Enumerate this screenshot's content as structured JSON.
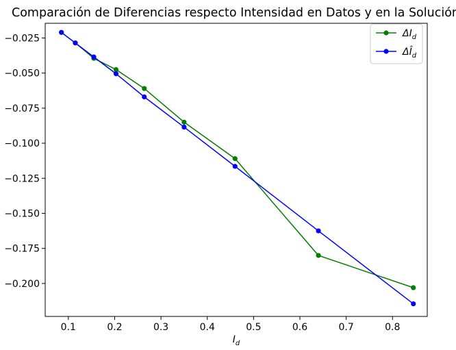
{
  "chart_data": {
    "type": "line",
    "title": "Comparación de Diferencias respecto Intensidad en Datos y en la Solución",
    "xlabel": "I_d",
    "ylabel": "",
    "xlim": [
      0.05,
      0.875
    ],
    "ylim": [
      -0.2235,
      -0.0145
    ],
    "x_ticks": [
      0.1,
      0.2,
      0.3,
      0.4,
      0.5,
      0.6,
      0.7,
      0.8
    ],
    "x_tick_labels": [
      "0.1",
      "0.2",
      "0.3",
      "0.4",
      "0.5",
      "0.6",
      "0.7",
      "0.8"
    ],
    "y_ticks": [
      -0.025,
      -0.05,
      -0.075,
      -0.1,
      -0.125,
      -0.15,
      -0.175,
      -0.2
    ],
    "y_tick_labels": [
      "−0.025",
      "−0.050",
      "−0.075",
      "−0.100",
      "−0.125",
      "−0.150",
      "−0.175",
      "−0.200"
    ],
    "grid": false,
    "legend_position": "top-right",
    "series": [
      {
        "name": "ΔI_d",
        "color": "#008000",
        "marker": "circle",
        "x": [
          0.085,
          0.115,
          0.155,
          0.203,
          0.264,
          0.35,
          0.46,
          0.64,
          0.845
        ],
        "y": [
          -0.021,
          -0.0285,
          -0.0395,
          -0.0475,
          -0.061,
          -0.085,
          -0.111,
          -0.18,
          -0.203
        ]
      },
      {
        "name": "ΔÎ_d",
        "color": "#0000ff",
        "marker": "circle",
        "x": [
          0.085,
          0.115,
          0.155,
          0.203,
          0.264,
          0.35,
          0.46,
          0.64,
          0.845
        ],
        "y": [
          -0.021,
          -0.0285,
          -0.0385,
          -0.0505,
          -0.067,
          -0.0885,
          -0.1165,
          -0.1625,
          -0.2145
        ]
      }
    ]
  }
}
